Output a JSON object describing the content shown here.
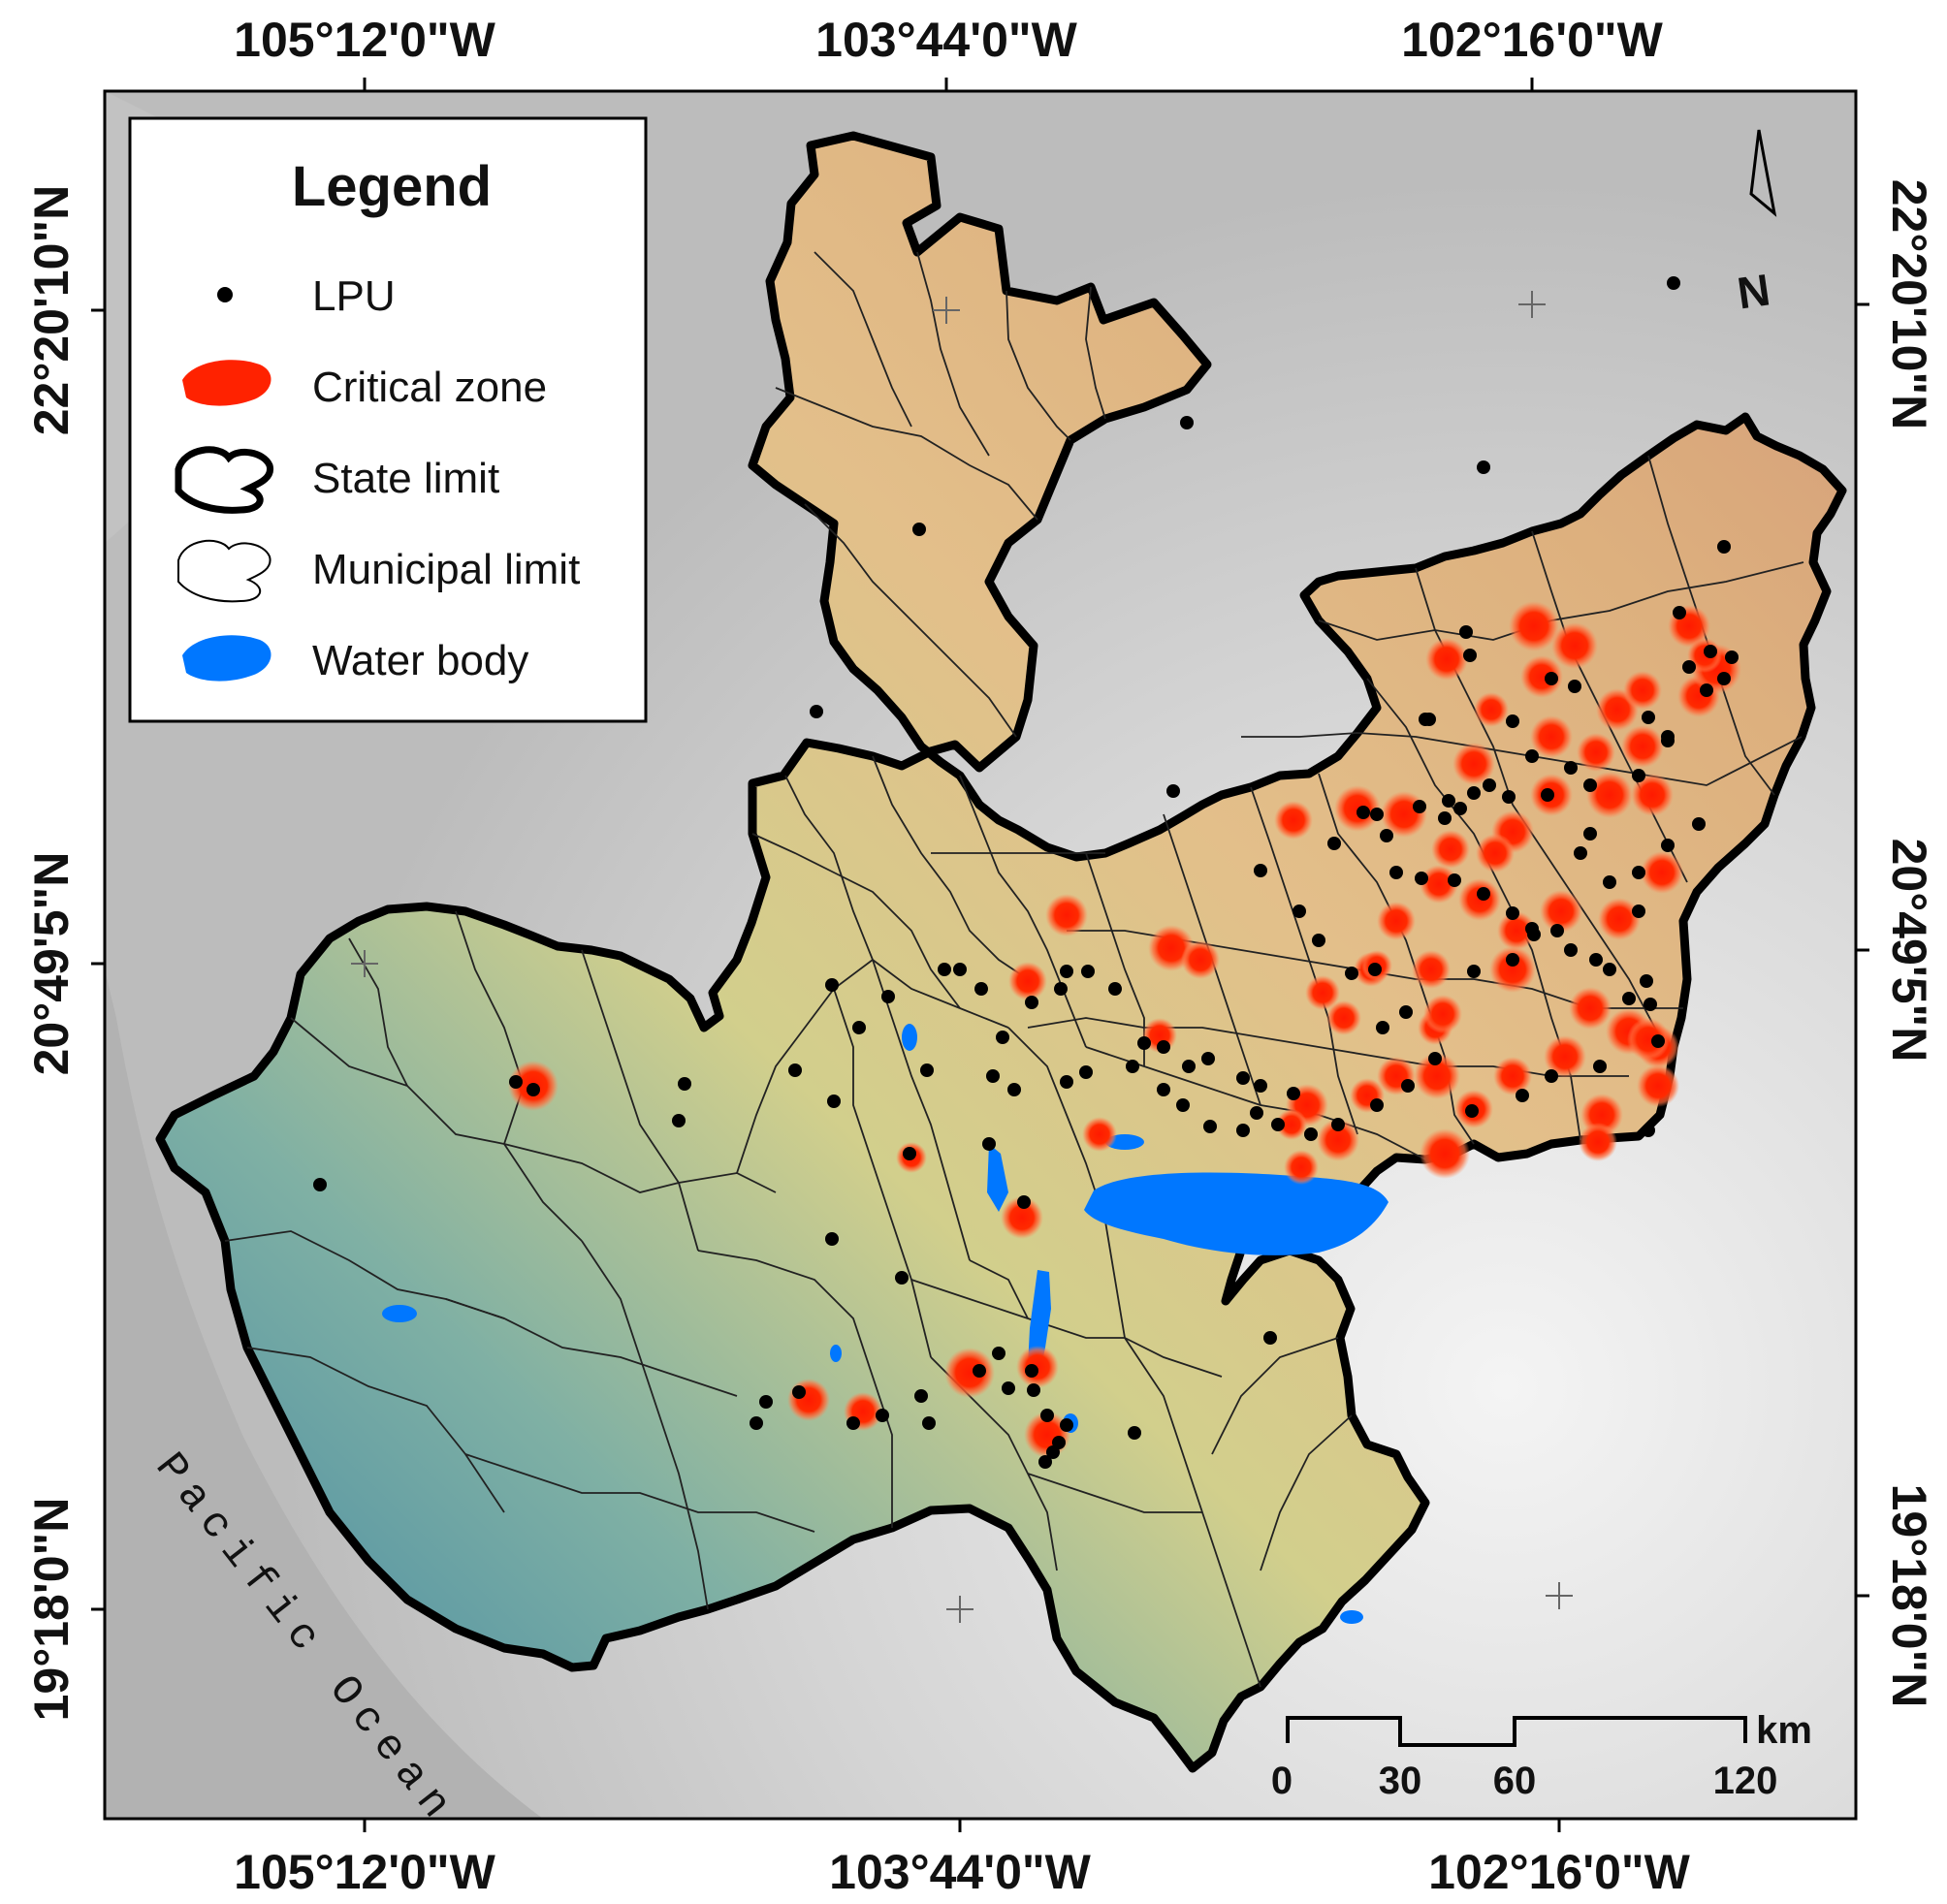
{
  "map": {
    "top_longitude_labels": [
      "105°12'0\"W",
      "103°44'0\"W",
      "102°16'0\"W"
    ],
    "bottom_longitude_labels": [
      "105°12'0\"W",
      "103°44'0\"W",
      "102°16'0\"W"
    ],
    "left_latitude_labels": [
      "22°20'10\"N",
      "20°49'5\"N",
      "19°18'0\"N"
    ],
    "right_latitude_labels": [
      "22°20'10\"N",
      "20°49'5\"N",
      "19°18'0\"N"
    ],
    "ocean_label": "Pacific Ocean",
    "colors": {
      "state_limit": "#000000",
      "critical_zone": "#ff2200",
      "water_body": "#0077ff",
      "lpu": "#000000",
      "hillshade_gray": "#cfcfcf"
    }
  },
  "legend": {
    "title": "Legend",
    "items": [
      {
        "label": "LPU",
        "icon": "dot-icon"
      },
      {
        "label": "Critical zone",
        "icon": "red-blob-icon"
      },
      {
        "label": "State limit",
        "icon": "bold-outline-icon"
      },
      {
        "label": "Municipal limit",
        "icon": "thin-outline-icon"
      },
      {
        "label": "Water body",
        "icon": "blue-blob-icon"
      }
    ]
  },
  "scale_bar": {
    "unit": "km",
    "ticks": [
      "0",
      "30",
      "60",
      "120"
    ]
  },
  "north_arrow": {
    "label": "N"
  }
}
